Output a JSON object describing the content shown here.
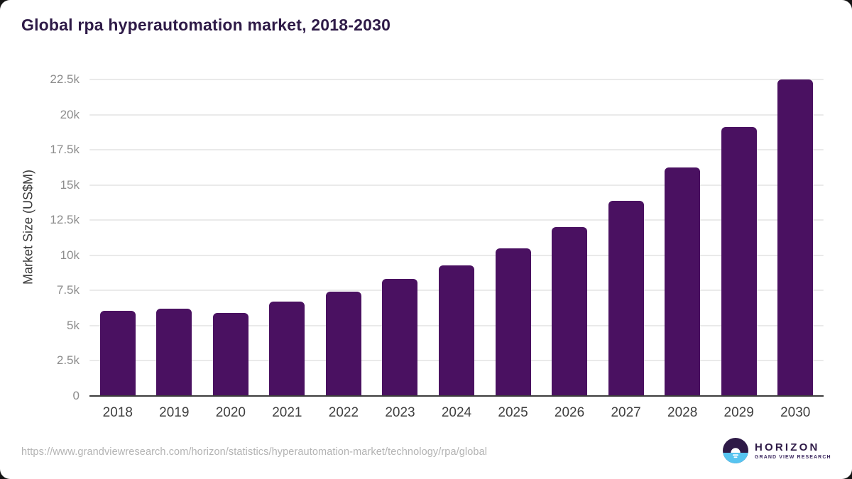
{
  "title": "Global rpa hyperautomation market, 2018-2030",
  "chart_data": {
    "type": "bar",
    "title": "Global rpa hyperautomation market, 2018-2030",
    "categories": [
      "2018",
      "2019",
      "2020",
      "2021",
      "2022",
      "2023",
      "2024",
      "2025",
      "2026",
      "2027",
      "2028",
      "2029",
      "2030"
    ],
    "values": [
      6050,
      6200,
      5900,
      6700,
      7400,
      8300,
      9300,
      10500,
      12000,
      13850,
      16250,
      19100,
      22500
    ],
    "xlabel": "",
    "ylabel": "Market Size (US$M)",
    "ylim": [
      0,
      22500
    ],
    "ytick_interval": 2500,
    "ytick_labels": [
      "0",
      "2.5k",
      "5k",
      "7.5k",
      "10k",
      "12.5k",
      "15k",
      "17.5k",
      "20k",
      "22.5k"
    ],
    "grid": true,
    "legend_position": "none",
    "bar_color": "#4a1161"
  },
  "footer": {
    "source_url": "https://www.grandviewresearch.com/horizon/statistics/hyperautomation-market/technology/rpa/global",
    "logo": {
      "name": "HORIZON",
      "subtitle": "GRAND VIEW RESEARCH"
    }
  },
  "colors": {
    "title": "#2e1a47",
    "bar": "#4a1161",
    "y_tick_label": "#8c8c8c",
    "x_tick_label": "#3f3f3f",
    "gridline": "#eaeaea",
    "baseline": "#3c3c3c",
    "source_url": "#b3b3b3",
    "logo_blue": "#57c4f0",
    "logo_purple": "#2e1a47"
  }
}
